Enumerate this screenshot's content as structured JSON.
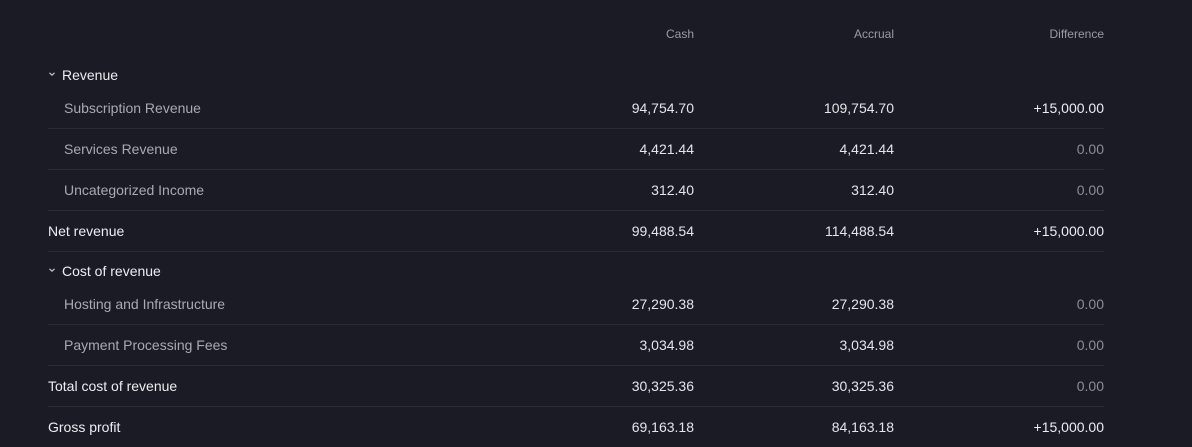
{
  "columns": {
    "cash": "Cash",
    "accrual": "Accrual",
    "difference": "Difference"
  },
  "revenue": {
    "title": "Revenue",
    "rows": [
      {
        "label": "Subscription Revenue",
        "cash": "94,754.70",
        "accrual": "109,754.70",
        "difference": "+15,000.00"
      },
      {
        "label": "Services Revenue",
        "cash": "4,421.44",
        "accrual": "4,421.44",
        "difference": "0.00"
      },
      {
        "label": "Uncategorized Income",
        "cash": "312.40",
        "accrual": "312.40",
        "difference": "0.00"
      }
    ],
    "total": {
      "label": "Net revenue",
      "cash": "99,488.54",
      "accrual": "114,488.54",
      "difference": "+15,000.00"
    }
  },
  "cost_of_revenue": {
    "title": "Cost of revenue",
    "rows": [
      {
        "label": "Hosting and Infrastructure",
        "cash": "27,290.38",
        "accrual": "27,290.38",
        "difference": "0.00"
      },
      {
        "label": "Payment Processing Fees",
        "cash": "3,034.98",
        "accrual": "3,034.98",
        "difference": "0.00"
      }
    ],
    "total": {
      "label": "Total cost of revenue",
      "cash": "30,325.36",
      "accrual": "30,325.36",
      "difference": "0.00"
    }
  },
  "gross_profit": {
    "label": "Gross profit",
    "cash": "69,163.18",
    "accrual": "84,163.18",
    "difference": "+15,000.00"
  },
  "icons": {
    "section_toggle": "chevron-down-icon"
  },
  "colors": {
    "background": "#1b1b25",
    "text": "#ececf2",
    "muted": "#a9a9b6",
    "zero": "#8c8c9a",
    "divider": "#2c2c38"
  }
}
